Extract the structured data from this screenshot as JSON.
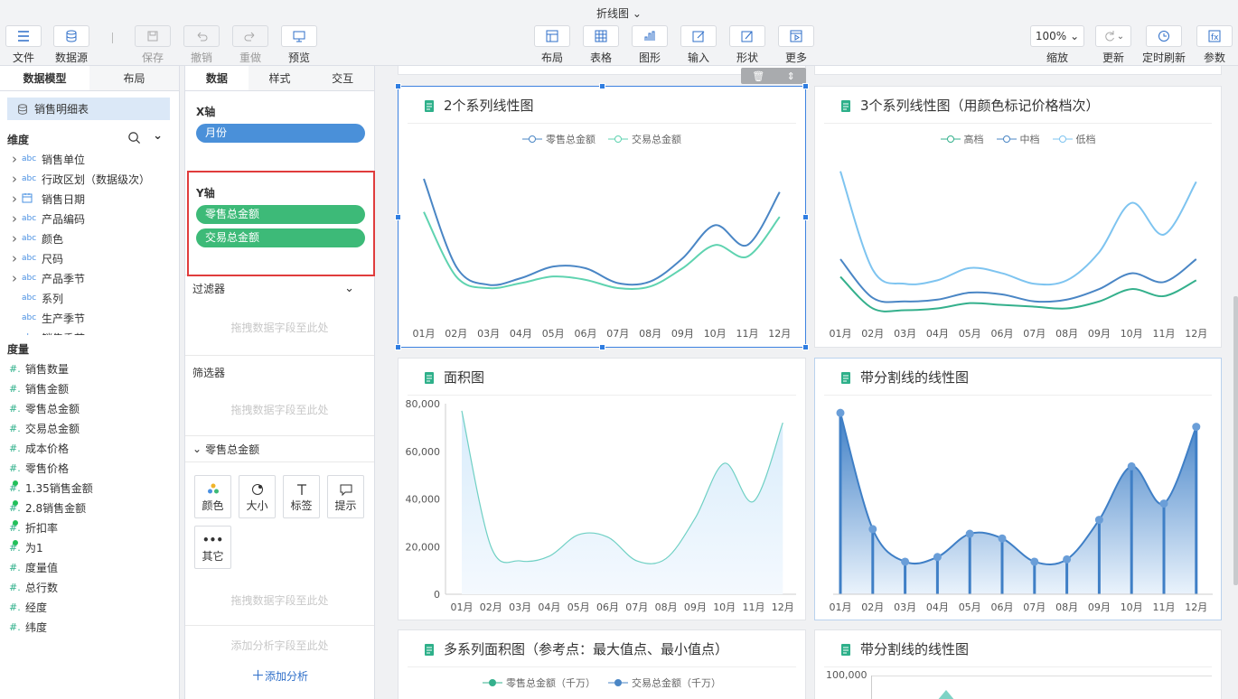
{
  "title": "折线图",
  "toolbar": {
    "file": "文件",
    "datasource": "数据源",
    "save": "保存",
    "undo": "撤销",
    "redo": "重做",
    "preview": "预览",
    "layout": "布局",
    "table": "表格",
    "graph": "图形",
    "input": "输入",
    "shape": "形状",
    "more": "更多",
    "zoom_value": "100%",
    "zoom": "缩放",
    "refresh": "更新",
    "timed_refresh": "定时刷新",
    "params": "参数"
  },
  "left": {
    "tab_model": "数据模型",
    "tab_layout": "布局",
    "table": "销售明细表",
    "dim_header": "维度",
    "dims": [
      {
        "label": "销售单位",
        "type": "abc",
        "expand": true
      },
      {
        "label": "行政区划（数据级次）",
        "type": "abc",
        "expand": true
      },
      {
        "label": "销售日期",
        "type": "date",
        "expand": true
      },
      {
        "label": "产品编码",
        "type": "abc",
        "expand": true
      },
      {
        "label": "颜色",
        "type": "abc",
        "expand": true
      },
      {
        "label": "尺码",
        "type": "abc",
        "expand": true
      },
      {
        "label": "产品季节",
        "type": "abc",
        "expand": true
      },
      {
        "label": "系列",
        "type": "abc",
        "expand": false
      },
      {
        "label": "生产季节",
        "type": "abc",
        "expand": false
      },
      {
        "label": "销售季节",
        "type": "abc",
        "expand": false
      }
    ],
    "measure_header": "度量",
    "measures": [
      {
        "label": "销售数量",
        "calc": false
      },
      {
        "label": "销售金额",
        "calc": false
      },
      {
        "label": "零售总金额",
        "calc": false
      },
      {
        "label": "交易总金额",
        "calc": false
      },
      {
        "label": "成本价格",
        "calc": false
      },
      {
        "label": "零售价格",
        "calc": false
      },
      {
        "label": "1.35销售金额",
        "calc": true
      },
      {
        "label": "2.8销售金额",
        "calc": true
      },
      {
        "label": "折扣率",
        "calc": true
      },
      {
        "label": "为1",
        "calc": true
      },
      {
        "label": "度量值",
        "calc": false
      },
      {
        "label": "总行数",
        "calc": false
      },
      {
        "label": "经度",
        "calc": false
      },
      {
        "label": "纬度",
        "calc": false
      }
    ]
  },
  "mid": {
    "tab_data": "数据",
    "tab_style": "样式",
    "tab_interact": "交互",
    "x_axis": "X轴",
    "x_field": "月份",
    "y_axis": "Y轴",
    "y_fields": [
      "零售总金额",
      "交易总金额"
    ],
    "filter": "过滤器",
    "filter_hint": "拖拽数据字段至此处",
    "selector": "筛选器",
    "selector_hint": "拖拽数据字段至此处",
    "measure_sec": "零售总金额",
    "btn_color": "颜色",
    "btn_size": "大小",
    "btn_label": "标签",
    "btn_tip": "提示",
    "btn_other": "其它",
    "measure_hint": "拖拽数据字段至此处",
    "analysis_hint": "添加分析字段至此处",
    "add_analysis": "添加分析"
  },
  "charts": {
    "c1": {
      "title": "2个系列线性图",
      "legend": [
        "零售总金额",
        "交易总金额"
      ],
      "colors": [
        "#4a86c5",
        "#5fd3b0"
      ]
    },
    "c2": {
      "title": "3个系列线性图（用颜色标记价格档次）",
      "legend": [
        "高档",
        "中档",
        "低档"
      ],
      "colors": [
        "#34b08c",
        "#4a86c5",
        "#7ec4f0"
      ]
    },
    "c3": {
      "title": "面积图",
      "ticks": [
        "80,000",
        "60,000",
        "40,000",
        "20,000",
        "0"
      ]
    },
    "c4": {
      "title": "带分割线的线性图"
    },
    "c5": {
      "title": "多系列面积图（参考点：最大值点、最小值点）",
      "legend": [
        "零售总金额（千万）",
        "交易总金额（千万）"
      ]
    },
    "c6": {
      "title": "带分割线的线性图",
      "tick": "100,000"
    },
    "months": [
      "01月",
      "02月",
      "03月",
      "04月",
      "05月",
      "06月",
      "07月",
      "08月",
      "09月",
      "10月",
      "11月",
      "12月"
    ]
  },
  "chart_data": [
    {
      "type": "line",
      "title": "2个系列线性图",
      "categories": [
        "01月",
        "02月",
        "03月",
        "04月",
        "05月",
        "06月",
        "07月",
        "08月",
        "09月",
        "10月",
        "11月",
        "12月"
      ],
      "series": [
        {
          "name": "零售总金额",
          "values": [
            78,
            25,
            14,
            18,
            25,
            24,
            15,
            16,
            30,
            50,
            38,
            70
          ]
        },
        {
          "name": "交易总金额",
          "values": [
            58,
            19,
            12,
            15,
            19,
            17,
            12,
            13,
            24,
            38,
            31,
            55
          ]
        }
      ]
    },
    {
      "type": "line",
      "title": "3个系列线性图（用颜色标记价格档次）",
      "categories": [
        "01月",
        "02月",
        "03月",
        "04月",
        "05月",
        "06月",
        "07月",
        "08月",
        "09月",
        "10月",
        "11月",
        "12月"
      ],
      "series": [
        {
          "name": "高档",
          "values": [
            28,
            10,
            9,
            10,
            13,
            12,
            11,
            10,
            14,
            21,
            17,
            26
          ]
        },
        {
          "name": "中档",
          "values": [
            38,
            16,
            14,
            15,
            19,
            18,
            14,
            15,
            21,
            30,
            25,
            38
          ]
        },
        {
          "name": "低档",
          "values": [
            88,
            32,
            24,
            26,
            33,
            30,
            24,
            26,
            42,
            70,
            52,
            82
          ]
        }
      ]
    },
    {
      "type": "area",
      "title": "面积图",
      "categories": [
        "01月",
        "02月",
        "03月",
        "04月",
        "05月",
        "06月",
        "07月",
        "08月",
        "09月",
        "10月",
        "11月",
        "12月"
      ],
      "ylim": [
        0,
        80000
      ],
      "series": [
        {
          "name": "",
          "values": [
            77000,
            20000,
            14000,
            16000,
            25000,
            24000,
            14000,
            15000,
            32000,
            55000,
            39000,
            72000
          ]
        }
      ]
    },
    {
      "type": "area",
      "title": "带分割线的线性图",
      "categories": [
        "01月",
        "02月",
        "03月",
        "04月",
        "05月",
        "06月",
        "07月",
        "08月",
        "09月",
        "10月",
        "11月",
        "12月"
      ],
      "series": [
        {
          "name": "",
          "values": [
            78,
            28,
            14,
            16,
            26,
            24,
            14,
            15,
            32,
            55,
            39,
            72
          ]
        }
      ]
    }
  ]
}
